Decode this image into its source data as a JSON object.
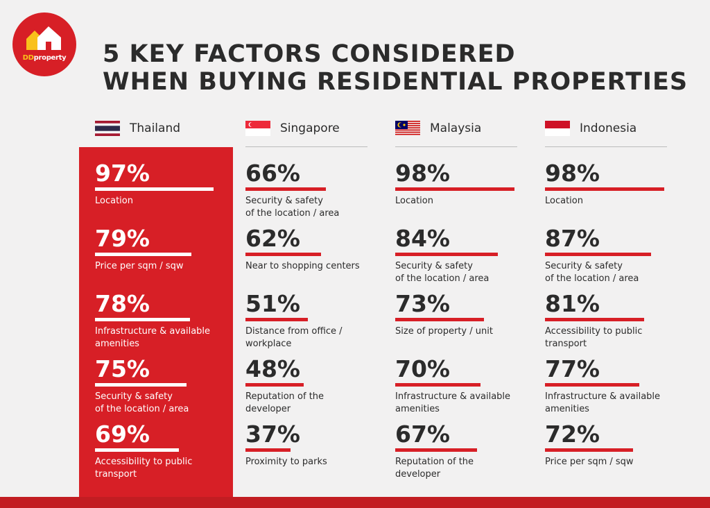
{
  "brand": {
    "logo_text_dd": "DD",
    "logo_text_rest": "property"
  },
  "title": {
    "line1": "5 KEY FACTORS CONSIDERED",
    "line2": "WHEN BUYING RESIDENTIAL PROPERTIES"
  },
  "colors": {
    "accent": "#d71f26",
    "background": "#f2f1f1",
    "text": "#2b2b2b"
  },
  "chart_data": {
    "type": "bar",
    "title": "5 KEY FACTORS CONSIDERED WHEN BUYING RESIDENTIAL PROPERTIES",
    "unit": "%",
    "xlim": [
      0,
      100
    ],
    "countries": [
      {
        "name": "Thailand",
        "flag": "thailand-flag-icon",
        "highlighted": true,
        "factors": [
          {
            "value": 97,
            "label": "Location"
          },
          {
            "value": 79,
            "label": "Price per sqm / sqw"
          },
          {
            "value": 78,
            "label": "Infrastructure & available\namenities"
          },
          {
            "value": 75,
            "label": "Security & safety\nof the location / area"
          },
          {
            "value": 69,
            "label": "Accessibility to public\ntransport"
          }
        ]
      },
      {
        "name": "Singapore",
        "flag": "singapore-flag-icon",
        "highlighted": false,
        "factors": [
          {
            "value": 66,
            "label": "Security & safety\nof the location / area"
          },
          {
            "value": 62,
            "label": "Near to shopping centers"
          },
          {
            "value": 51,
            "label": "Distance from office /\nworkplace"
          },
          {
            "value": 48,
            "label": "Reputation of the developer"
          },
          {
            "value": 37,
            "label": "Proximity to parks"
          }
        ]
      },
      {
        "name": "Malaysia",
        "flag": "malaysia-flag-icon",
        "highlighted": false,
        "factors": [
          {
            "value": 98,
            "label": "Location"
          },
          {
            "value": 84,
            "label": "Security & safety\nof the location / area"
          },
          {
            "value": 73,
            "label": "Size of property / unit"
          },
          {
            "value": 70,
            "label": "Infrastructure & available\namenities"
          },
          {
            "value": 67,
            "label": "Reputation of the developer"
          }
        ]
      },
      {
        "name": "Indonesia",
        "flag": "indonesia-flag-icon",
        "highlighted": false,
        "factors": [
          {
            "value": 98,
            "label": "Location"
          },
          {
            "value": 87,
            "label": "Security & safety\nof the location / area"
          },
          {
            "value": 81,
            "label": "Accessibility to public\ntransport"
          },
          {
            "value": 77,
            "label": "Infrastructure & available\namenities"
          },
          {
            "value": 72,
            "label": "Price per sqm / sqw"
          }
        ]
      }
    ]
  }
}
